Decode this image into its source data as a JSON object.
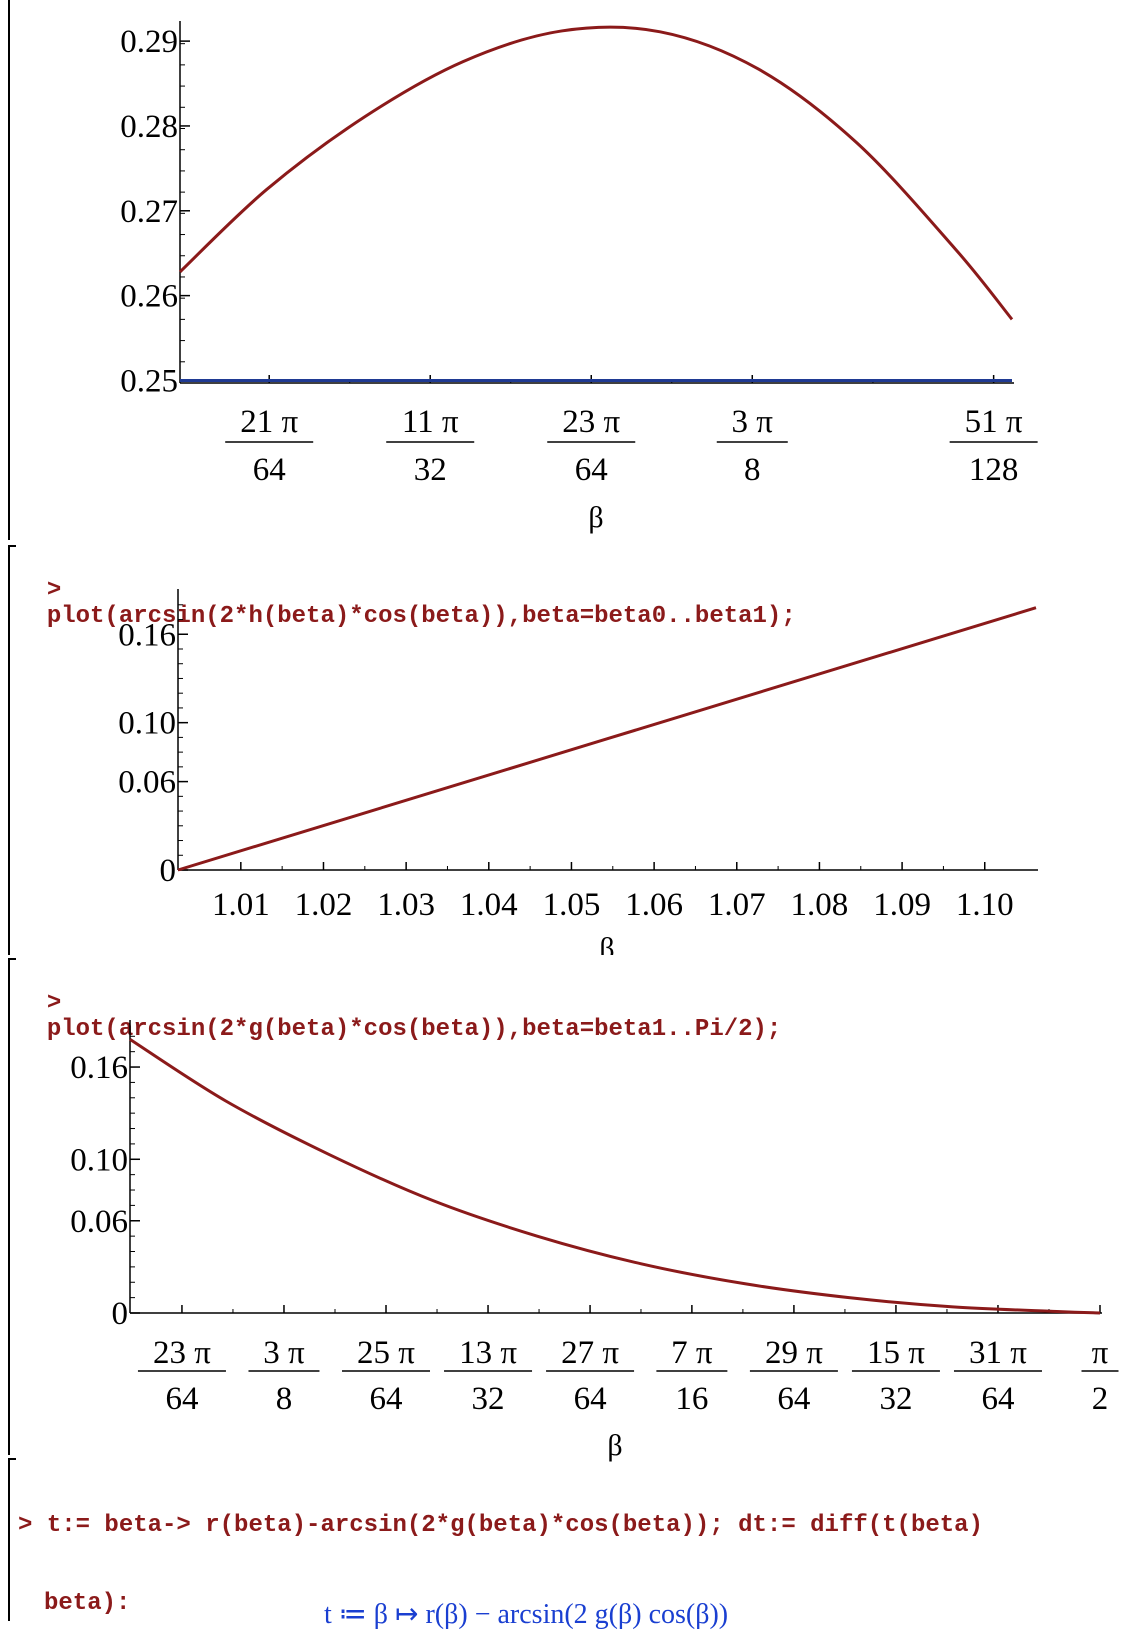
{
  "commands": [
    {
      "prompt": ">",
      "text": "plot(arcsin(2*h(beta)*cos(beta)),beta=beta0..beta1);"
    },
    {
      "prompt": ">",
      "text": "plot(arcsin(2*g(beta)*cos(beta)),beta=beta1..Pi/2);"
    },
    {
      "prompt": ">",
      "line1": "t:= beta-> r(beta)-arcsin(2*g(beta)*cos(beta)); dt:= diff(t(beta)",
      "line2": "beta):"
    }
  ],
  "output": {
    "text": "t ≔ β ↦ r(β) − arcsin(2 g(β) cos(β))"
  },
  "colors": {
    "command": "#8b1a1a",
    "curve": "#8b1a1a",
    "line": "#1f3a93",
    "output": "#1a3fd1"
  },
  "chart_data": [
    {
      "type": "line",
      "xlabel": "β",
      "y_tick_labels": [
        "0.25",
        "0.26",
        "0.27",
        "0.28",
        "0.29"
      ],
      "y_ticks": [
        0.25,
        0.26,
        0.27,
        0.28,
        0.29
      ],
      "x_tick_labels": [
        {
          "num": "21 π",
          "den": "64"
        },
        {
          "num": "11 π",
          "den": "32"
        },
        {
          "num": "23 π",
          "den": "64"
        },
        {
          "num": "3 π",
          "den": "8"
        },
        {
          "num": "51 π",
          "den": "128"
        }
      ],
      "x_ticks": [
        1.0308,
        1.0799,
        1.129,
        1.1781,
        1.2517
      ],
      "xlim": [
        1.0036,
        1.2573
      ],
      "ylim": [
        0.2497,
        0.2919
      ],
      "series": [
        {
          "x": [
            1.0036,
            1.03,
            1.06,
            1.09,
            1.12,
            1.15,
            1.18,
            1.21,
            1.24,
            1.2573
          ],
          "y": [
            0.2628,
            0.2725,
            0.2811,
            0.2876,
            0.2912,
            0.2911,
            0.2867,
            0.278,
            0.2655,
            0.2572
          ]
        },
        {
          "x": [
            1.0036,
            1.2573
          ],
          "y": [
            0.25,
            0.25
          ]
        }
      ]
    },
    {
      "type": "line",
      "xlabel": "β",
      "y_tick_labels": [
        "0",
        "0.06",
        "0.10",
        "0.16"
      ],
      "y_ticks": [
        0,
        0.06,
        0.1,
        0.16
      ],
      "x_tick_labels": [
        "1.01",
        "1.02",
        "1.03",
        "1.04",
        "1.05",
        "1.06",
        "1.07",
        "1.08",
        "1.09",
        "1.10"
      ],
      "x_ticks": [
        1.01,
        1.02,
        1.03,
        1.04,
        1.05,
        1.06,
        1.07,
        1.08,
        1.09,
        1.1
      ],
      "xlim": [
        1.0024,
        1.1062
      ],
      "ylim": [
        0,
        0.188
      ],
      "series": [
        {
          "x": [
            1.0024,
            1.1062
          ],
          "y": [
            0,
            0.178
          ]
        }
      ]
    },
    {
      "type": "line",
      "xlabel": "β",
      "y_tick_labels": [
        "0",
        "0.06",
        "0.10",
        "0.16"
      ],
      "y_ticks": [
        0,
        0.06,
        0.1,
        0.16
      ],
      "x_tick_labels": [
        {
          "num": "23 π",
          "den": "64"
        },
        {
          "num": "3 π",
          "den": "8"
        },
        {
          "num": "25 π",
          "den": "64"
        },
        {
          "num": "13 π",
          "den": "32"
        },
        {
          "num": "27 π",
          "den": "64"
        },
        {
          "num": "7 π",
          "den": "16"
        },
        {
          "num": "29 π",
          "den": "64"
        },
        {
          "num": "15 π",
          "den": "32"
        },
        {
          "num": "31 π",
          "den": "64"
        },
        {
          "num": "π",
          "den": "2"
        }
      ],
      "x_ticks": [
        1.129,
        1.1781,
        1.2272,
        1.2763,
        1.3254,
        1.3744,
        1.4235,
        1.4726,
        1.5217,
        1.5708
      ],
      "xlim": [
        1.104,
        1.5708
      ],
      "ylim": [
        0,
        0.188
      ],
      "series": [
        {
          "x": [
            1.104,
            1.15,
            1.2,
            1.25,
            1.3,
            1.35,
            1.4,
            1.45,
            1.5,
            1.55,
            1.5708
          ],
          "y": [
            0.178,
            0.138,
            0.103,
            0.073,
            0.05,
            0.032,
            0.019,
            0.01,
            0.004,
            0.001,
            0.0
          ]
        }
      ]
    }
  ]
}
